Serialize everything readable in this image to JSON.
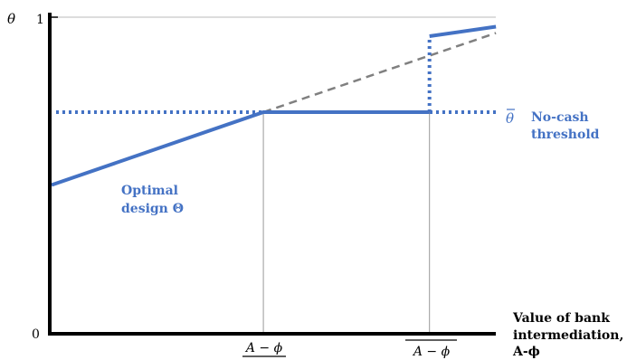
{
  "chart_data": {
    "type": "line",
    "y_axis": {
      "label": "θ",
      "ticks": [
        "0",
        "1"
      ],
      "ylim": [
        0,
        1
      ]
    },
    "x_axis": {
      "label": [
        "Value of bank",
        "intermediation,",
        "A-ϕ"
      ],
      "ticks": [
        "A − ϕ",
        "A − ϕ"
      ]
    },
    "series": [
      {
        "name": "Optimal design Θ",
        "name_lines": [
          "Optimal",
          "design Θ"
        ],
        "style": "solid",
        "color": "#4472c4",
        "points": [
          [
            0.0,
            0.47
          ],
          [
            0.51,
            0.7
          ],
          [
            0.91,
            0.7
          ],
          [
            0.91,
            0.94
          ],
          [
            1.07,
            0.97
          ]
        ]
      },
      {
        "name": "No-cash threshold",
        "symbol": "θ",
        "name_lines": [
          "No-cash",
          "threshold"
        ],
        "style": "dotted",
        "color": "#4472c4",
        "value": 0.7
      },
      {
        "style": "dashed",
        "color": "#7f7f7f",
        "points": [
          [
            0.51,
            0.7
          ],
          [
            1.07,
            0.95
          ]
        ]
      }
    ],
    "guides": [
      0.51,
      0.91
    ],
    "grid": false
  }
}
